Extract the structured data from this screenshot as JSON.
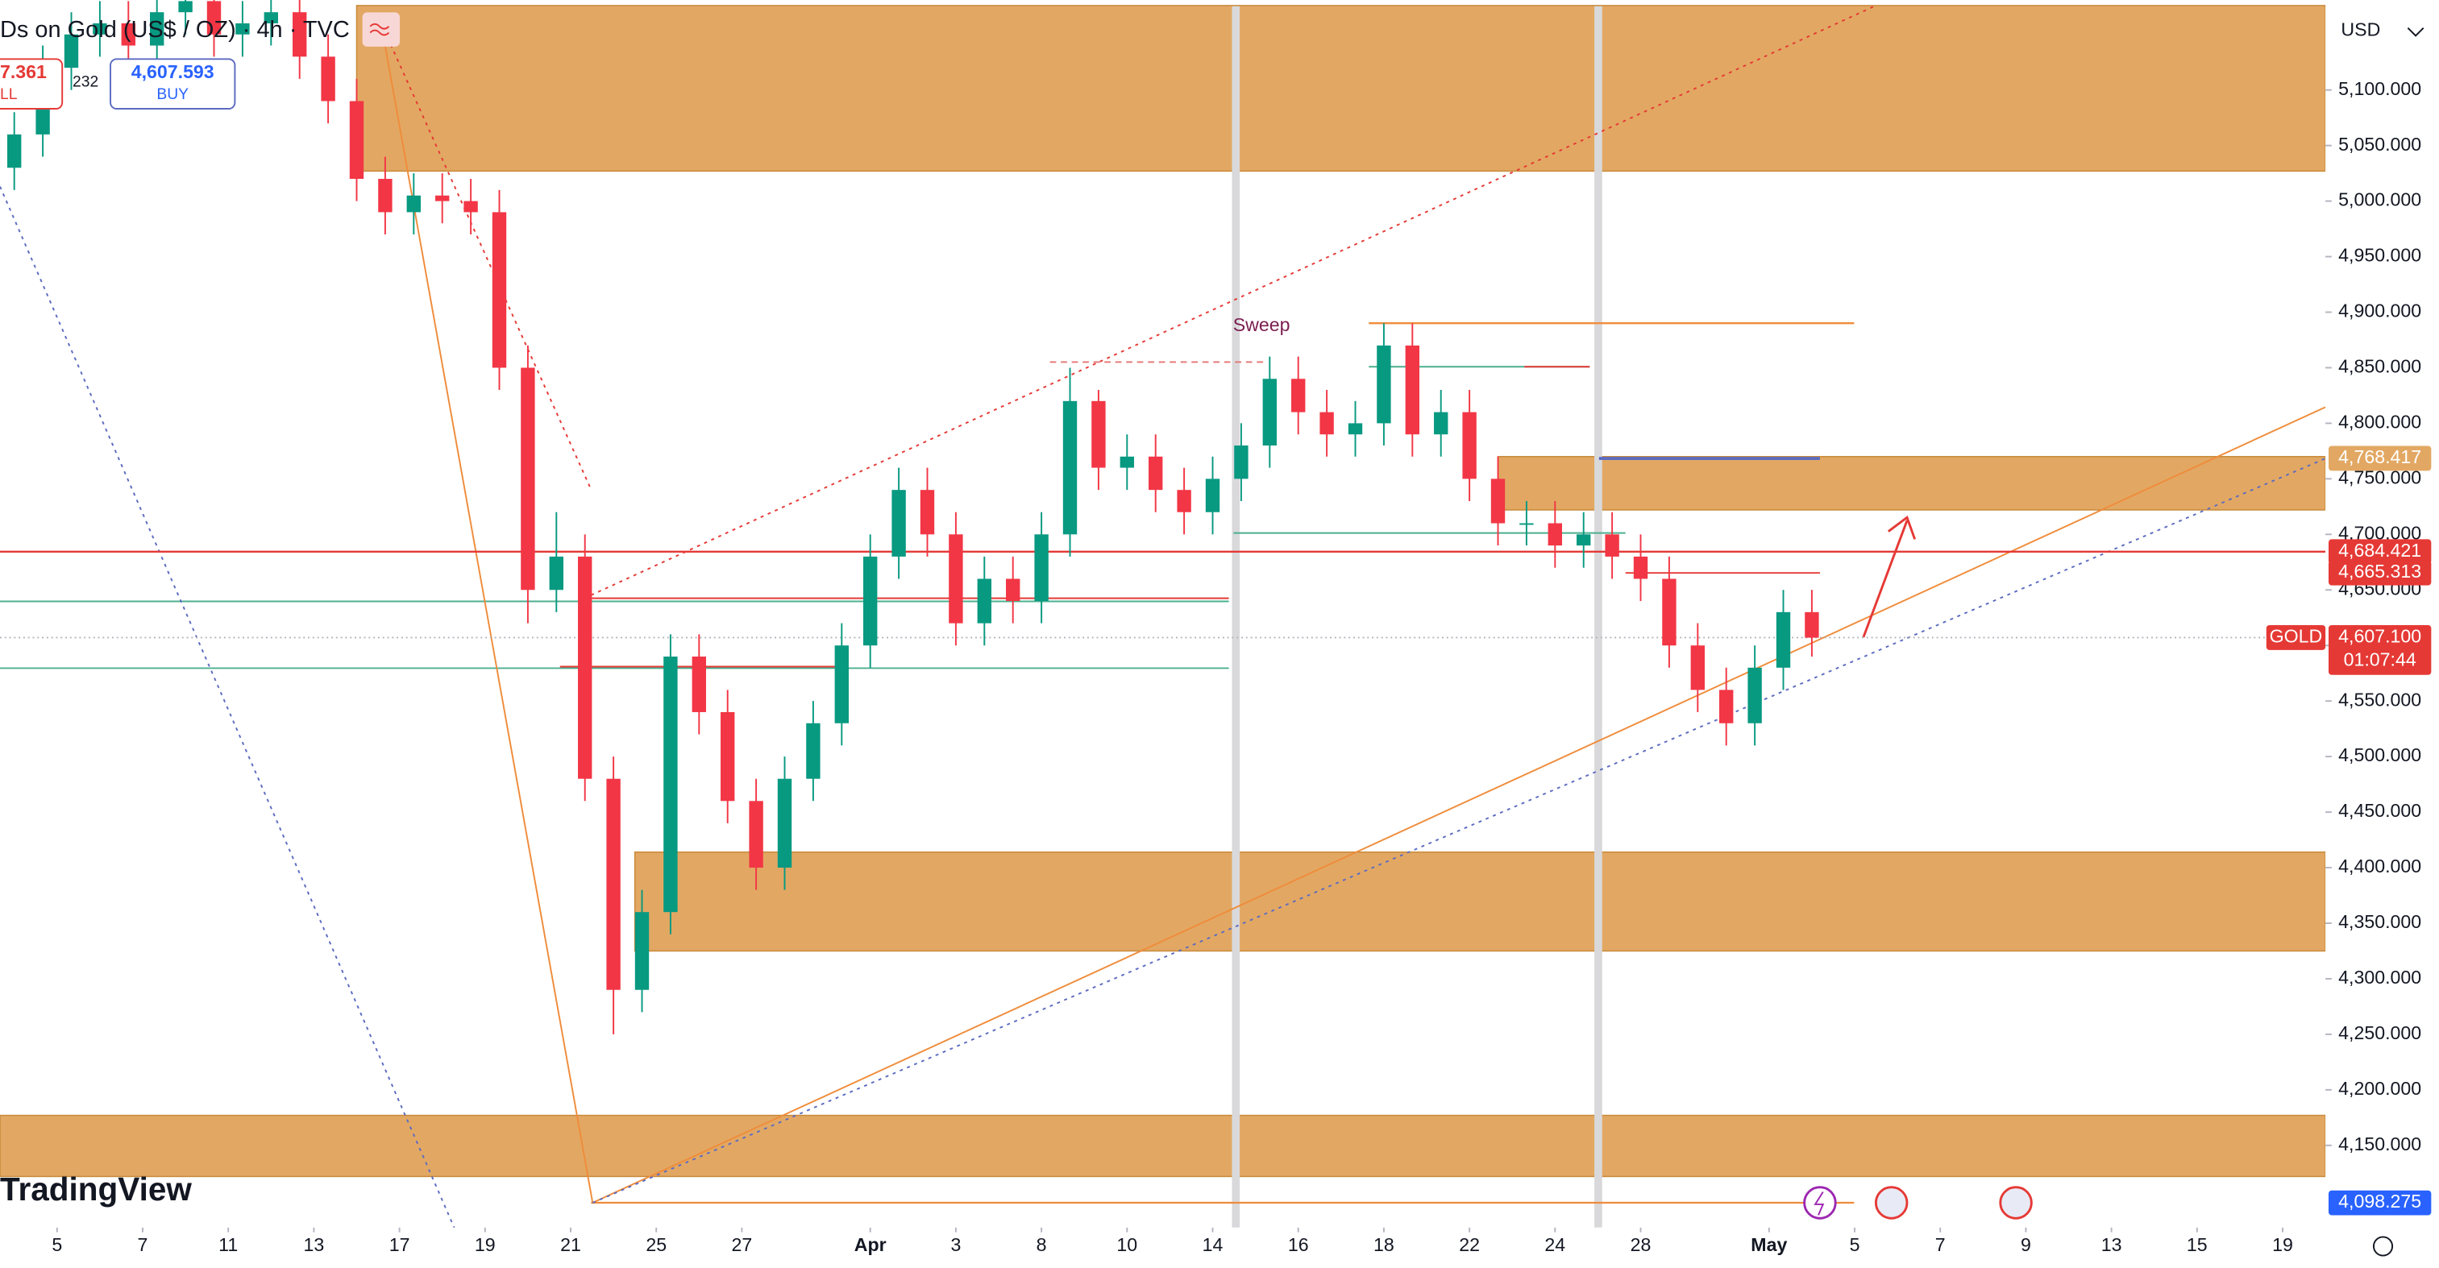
{
  "chart_data": {
    "type": "candlestick",
    "title": "Ds on Gold (US$ / OZ) · 4h · TVC",
    "sell_price": "7.361",
    "sell_label": "LL",
    "spread": "232",
    "buy_price": "4,607.593",
    "buy_label": "BUY",
    "watermark": "TradingView",
    "currency": "USD",
    "symbol_tag": "GOLD",
    "countdown": "01:07:44",
    "annotation": "Sweep",
    "up_color": "#089981",
    "down_color": "#f23645",
    "zone_color": "#e2a863",
    "xlim": [
      -8,
      318
    ],
    "ylim": [
      4076,
      5181
    ],
    "xticks": [
      {
        "value": 0,
        "label": "5"
      },
      {
        "value": 12,
        "label": "7"
      },
      {
        "value": 24,
        "label": "11"
      },
      {
        "value": 36,
        "label": "13"
      },
      {
        "value": 48,
        "label": "17"
      },
      {
        "value": 60,
        "label": "19"
      },
      {
        "value": 72,
        "label": "21"
      },
      {
        "value": 84,
        "label": "25"
      },
      {
        "value": 96,
        "label": "27"
      },
      {
        "value": 114,
        "label": "Apr"
      },
      {
        "value": 126,
        "label": "3"
      },
      {
        "value": 138,
        "label": "8"
      },
      {
        "value": 150,
        "label": "10"
      },
      {
        "value": 162,
        "label": "14"
      },
      {
        "value": 174,
        "label": "16"
      },
      {
        "value": 186,
        "label": "18"
      },
      {
        "value": 198,
        "label": "22"
      },
      {
        "value": 210,
        "label": "24"
      },
      {
        "value": 222,
        "label": "28"
      },
      {
        "value": 240,
        "label": "May"
      },
      {
        "value": 252,
        "label": "5"
      },
      {
        "value": 264,
        "label": "7"
      },
      {
        "value": 276,
        "label": "9"
      },
      {
        "value": 288,
        "label": "13"
      },
      {
        "value": 300,
        "label": "15"
      },
      {
        "value": 312,
        "label": "19"
      }
    ],
    "yticks": [
      {
        "value": 4150,
        "label": "4,150.000"
      },
      {
        "value": 4200,
        "label": "4,200.000"
      },
      {
        "value": 4250,
        "label": "4,250.000"
      },
      {
        "value": 4300,
        "label": "4,300.000"
      },
      {
        "value": 4350,
        "label": "4,350.000"
      },
      {
        "value": 4400,
        "label": "4,400.000"
      },
      {
        "value": 4450,
        "label": "4,450.000"
      },
      {
        "value": 4500,
        "label": "4,500.000"
      },
      {
        "value": 4550,
        "label": "4,550.000"
      },
      {
        "value": 4600,
        "label": "4,600.000"
      },
      {
        "value": 4650,
        "label": "4,650.000"
      },
      {
        "value": 4700,
        "label": "4,700.000"
      },
      {
        "value": 4750,
        "label": "4,750.000"
      },
      {
        "value": 4800,
        "label": "4,800.000"
      },
      {
        "value": 4850,
        "label": "4,850.000"
      },
      {
        "value": 4900,
        "label": "4,900.000"
      },
      {
        "value": 4950,
        "label": "4,950.000"
      },
      {
        "value": 5000,
        "label": "5,000.000"
      },
      {
        "value": 5050,
        "label": "5,050.000"
      },
      {
        "value": 5100,
        "label": "5,100.000"
      }
    ],
    "price_tags": [
      {
        "value": 4768.417,
        "label": "4,768.417",
        "color": "#e2a863"
      },
      {
        "value": 4684.421,
        "label": "4,684.421",
        "color": "#e53935"
      },
      {
        "value": 4665.313,
        "label": "4,665.313",
        "color": "#e53935"
      },
      {
        "value": 4607.1,
        "label": "4,607.100",
        "color": "#e53935"
      },
      {
        "value": 4098.275,
        "label": "4,098.275",
        "color": "#2962ff"
      }
    ],
    "zones": [
      {
        "low": 5027,
        "high": 5176,
        "x0": 42
      },
      {
        "low": 4722,
        "high": 4770,
        "x0": 202
      },
      {
        "low": 4325,
        "high": 4414,
        "x0": 81
      },
      {
        "low": 4122,
        "high": 4177,
        "x0": -8
      }
    ],
    "x": [
      -6,
      -2,
      2,
      6,
      10,
      14,
      18,
      22,
      26,
      30,
      34,
      38,
      42,
      46,
      50,
      54,
      58,
      62,
      66,
      70,
      74,
      78,
      82,
      86,
      90,
      94,
      98,
      102,
      106,
      110,
      114,
      118,
      122,
      126,
      130,
      134,
      138,
      142,
      146,
      150,
      154,
      158,
      162,
      166,
      170,
      174,
      178,
      182,
      186,
      190,
      194,
      198,
      202,
      206,
      210,
      214,
      218,
      222,
      226,
      230,
      234,
      238,
      242,
      246
    ],
    "open": [
      5030,
      5060,
      5120,
      5150,
      5160,
      5140,
      5170,
      5180,
      5150,
      5160,
      5170,
      5130,
      5090,
      5020,
      4990,
      5005,
      5000,
      4990,
      4850,
      4650,
      4680,
      4480,
      4290,
      4360,
      4590,
      4540,
      4460,
      4400,
      4480,
      4530,
      4600,
      4680,
      4740,
      4700,
      4620,
      4660,
      4640,
      4700,
      4820,
      4760,
      4770,
      4740,
      4720,
      4750,
      4780,
      4840,
      4810,
      4790,
      4800,
      4870,
      4790,
      4810,
      4750,
      4710,
      4710,
      4690,
      4700,
      4680,
      4660,
      4600,
      4560,
      4530,
      4580,
      4630
    ],
    "high": [
      5080,
      5140,
      5170,
      5180,
      5180,
      5190,
      5200,
      5200,
      5180,
      5190,
      5190,
      5150,
      5110,
      5040,
      5025,
      5025,
      5020,
      5010,
      4870,
      4720,
      4700,
      4500,
      4380,
      4610,
      4610,
      4560,
      4480,
      4500,
      4550,
      4620,
      4700,
      4760,
      4760,
      4720,
      4680,
      4680,
      4720,
      4850,
      4830,
      4790,
      4790,
      4760,
      4770,
      4800,
      4860,
      4860,
      4830,
      4820,
      4890,
      4890,
      4830,
      4830,
      4770,
      4730,
      4730,
      4720,
      4720,
      4700,
      4680,
      4620,
      4580,
      4600,
      4650,
      4650
    ],
    "low": [
      5010,
      5040,
      5100,
      5130,
      5120,
      5120,
      5150,
      5130,
      5130,
      5140,
      5110,
      5070,
      5000,
      4970,
      4970,
      4980,
      4970,
      4830,
      4620,
      4630,
      4460,
      4250,
      4270,
      4340,
      4520,
      4440,
      4380,
      4380,
      4460,
      4510,
      4580,
      4660,
      4680,
      4600,
      4600,
      4620,
      4620,
      4680,
      4740,
      4740,
      4720,
      4700,
      4700,
      4730,
      4760,
      4790,
      4770,
      4770,
      4780,
      4770,
      4770,
      4730,
      4690,
      4690,
      4670,
      4670,
      4660,
      4640,
      4580,
      4540,
      4510,
      4510,
      4560,
      4590
    ],
    "close": [
      5060,
      5120,
      5150,
      5160,
      5140,
      5170,
      5180,
      5150,
      5160,
      5170,
      5130,
      5090,
      5020,
      4990,
      5005,
      5000,
      4990,
      4850,
      4650,
      4680,
      4480,
      4290,
      4360,
      4590,
      4540,
      4460,
      4400,
      4480,
      4530,
      4600,
      4680,
      4740,
      4700,
      4620,
      4660,
      4640,
      4700,
      4820,
      4760,
      4770,
      4740,
      4720,
      4750,
      4780,
      4840,
      4810,
      4790,
      4800,
      4870,
      4790,
      4810,
      4750,
      4710,
      4710,
      4690,
      4700,
      4680,
      4660,
      4600,
      4560,
      4530,
      4580,
      4630,
      4607
    ]
  }
}
